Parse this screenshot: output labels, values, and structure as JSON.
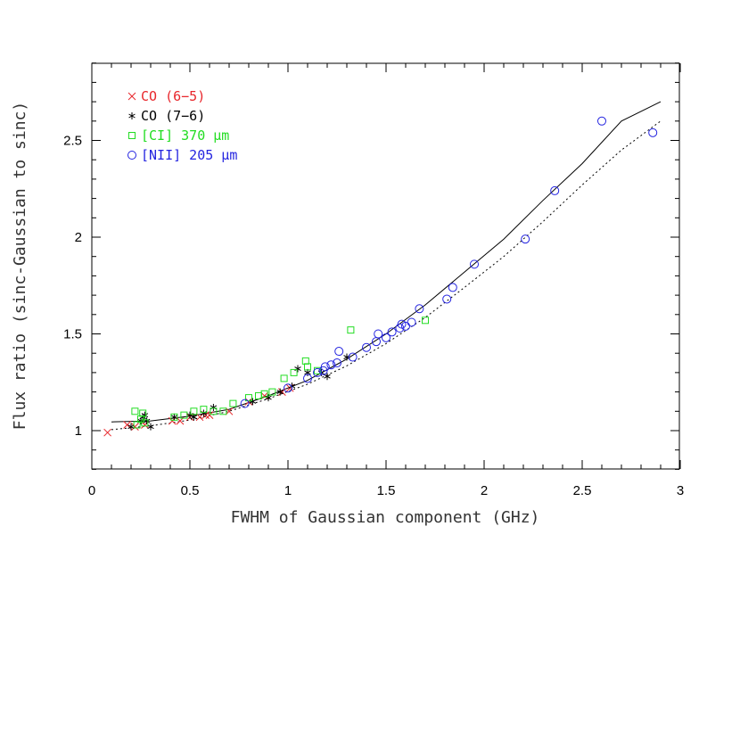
{
  "chart_data": {
    "type": "scatter",
    "title": "",
    "xlabel": "FWHM of Gaussian component (GHz)",
    "ylabel": "Flux ratio (sinc-Gaussian to sinc)",
    "xlim": [
      0,
      3
    ],
    "ylim": [
      0.8,
      2.9
    ],
    "xticks": [
      0,
      0.5,
      1,
      1.5,
      2,
      2.5,
      3
    ],
    "xtick_labels": [
      "0",
      "0.5",
      "1",
      "1.5",
      "2",
      "2.5",
      "3"
    ],
    "yticks": [
      1,
      1.5,
      2,
      2.5
    ],
    "ytick_labels": [
      "1",
      "1.5",
      "2",
      "2.5"
    ],
    "grid": false,
    "legend_position": "top-left",
    "series": [
      {
        "name": "CO (6−5)",
        "marker": "x",
        "color": "#e8262b",
        "points": [
          [
            0.08,
            0.99
          ],
          [
            0.18,
            1.03
          ],
          [
            0.22,
            1.02
          ],
          [
            0.27,
            1.03
          ],
          [
            0.41,
            1.05
          ],
          [
            0.45,
            1.05
          ],
          [
            0.5,
            1.07
          ],
          [
            0.55,
            1.07
          ],
          [
            0.58,
            1.08
          ],
          [
            0.6,
            1.08
          ],
          [
            0.7,
            1.1
          ],
          [
            0.8,
            1.15
          ],
          [
            0.88,
            1.18
          ],
          [
            0.97,
            1.2
          ],
          [
            1.01,
            1.22
          ]
        ]
      },
      {
        "name": "CO (7−6)",
        "marker": "star",
        "color": "#000000",
        "points": [
          [
            0.2,
            1.02
          ],
          [
            0.25,
            1.05
          ],
          [
            0.26,
            1.07
          ],
          [
            0.27,
            1.08
          ],
          [
            0.28,
            1.05
          ],
          [
            0.3,
            1.02
          ],
          [
            0.42,
            1.07
          ],
          [
            0.5,
            1.08
          ],
          [
            0.52,
            1.07
          ],
          [
            0.57,
            1.09
          ],
          [
            0.62,
            1.12
          ],
          [
            0.82,
            1.15
          ],
          [
            0.9,
            1.17
          ],
          [
            0.96,
            1.2
          ],
          [
            1.02,
            1.23
          ],
          [
            1.05,
            1.32
          ],
          [
            1.1,
            1.3
          ],
          [
            1.17,
            1.3
          ],
          [
            1.2,
            1.28
          ],
          [
            1.3,
            1.38
          ]
        ]
      },
      {
        "name": "[CI] 370 μm",
        "marker": "square",
        "color": "#22dd22",
        "points": [
          [
            0.22,
            1.1
          ],
          [
            0.23,
            1.03
          ],
          [
            0.25,
            1.06
          ],
          [
            0.26,
            1.09
          ],
          [
            0.27,
            1.04
          ],
          [
            0.42,
            1.07
          ],
          [
            0.47,
            1.08
          ],
          [
            0.52,
            1.1
          ],
          [
            0.57,
            1.11
          ],
          [
            0.62,
            1.1
          ],
          [
            0.67,
            1.1
          ],
          [
            0.72,
            1.14
          ],
          [
            0.8,
            1.17
          ],
          [
            0.85,
            1.18
          ],
          [
            0.88,
            1.19
          ],
          [
            0.92,
            1.2
          ],
          [
            0.98,
            1.27
          ],
          [
            1.03,
            1.3
          ],
          [
            1.09,
            1.36
          ],
          [
            1.1,
            1.33
          ],
          [
            1.15,
            1.31
          ],
          [
            1.32,
            1.52
          ],
          [
            1.7,
            1.57
          ]
        ]
      },
      {
        "name": "[NII] 205 μm",
        "marker": "circle",
        "color": "#2424e0",
        "points": [
          [
            0.78,
            1.14
          ],
          [
            1.0,
            1.22
          ],
          [
            1.1,
            1.27
          ],
          [
            1.15,
            1.3
          ],
          [
            1.18,
            1.31
          ],
          [
            1.19,
            1.33
          ],
          [
            1.22,
            1.34
          ],
          [
            1.25,
            1.35
          ],
          [
            1.26,
            1.41
          ],
          [
            1.33,
            1.38
          ],
          [
            1.4,
            1.43
          ],
          [
            1.45,
            1.46
          ],
          [
            1.46,
            1.5
          ],
          [
            1.5,
            1.48
          ],
          [
            1.53,
            1.51
          ],
          [
            1.57,
            1.53
          ],
          [
            1.58,
            1.55
          ],
          [
            1.6,
            1.54
          ],
          [
            1.63,
            1.56
          ],
          [
            1.67,
            1.63
          ],
          [
            1.81,
            1.68
          ],
          [
            1.84,
            1.74
          ],
          [
            1.95,
            1.86
          ],
          [
            2.21,
            1.99
          ],
          [
            2.36,
            2.24
          ],
          [
            2.6,
            2.6
          ],
          [
            2.86,
            2.54
          ]
        ]
      }
    ],
    "lines": [
      {
        "style": "solid",
        "color": "#000000",
        "points": [
          [
            0.1,
            1.045
          ],
          [
            0.3,
            1.05
          ],
          [
            0.5,
            1.075
          ],
          [
            0.7,
            1.11
          ],
          [
            0.9,
            1.18
          ],
          [
            1.1,
            1.26
          ],
          [
            1.3,
            1.37
          ],
          [
            1.5,
            1.5
          ],
          [
            1.7,
            1.65
          ],
          [
            1.9,
            1.82
          ],
          [
            2.1,
            1.99
          ],
          [
            2.3,
            2.19
          ],
          [
            2.5,
            2.38
          ],
          [
            2.7,
            2.6
          ],
          [
            2.9,
            2.7
          ]
        ]
      },
      {
        "style": "dotted",
        "color": "#000000",
        "points": [
          [
            0.1,
            1.005
          ],
          [
            0.3,
            1.025
          ],
          [
            0.5,
            1.055
          ],
          [
            0.7,
            1.1
          ],
          [
            0.9,
            1.165
          ],
          [
            1.1,
            1.24
          ],
          [
            1.3,
            1.335
          ],
          [
            1.5,
            1.45
          ],
          [
            1.7,
            1.585
          ],
          [
            1.9,
            1.74
          ],
          [
            2.1,
            1.9
          ],
          [
            2.3,
            2.08
          ],
          [
            2.5,
            2.27
          ],
          [
            2.7,
            2.45
          ],
          [
            2.9,
            2.6
          ]
        ]
      }
    ]
  }
}
